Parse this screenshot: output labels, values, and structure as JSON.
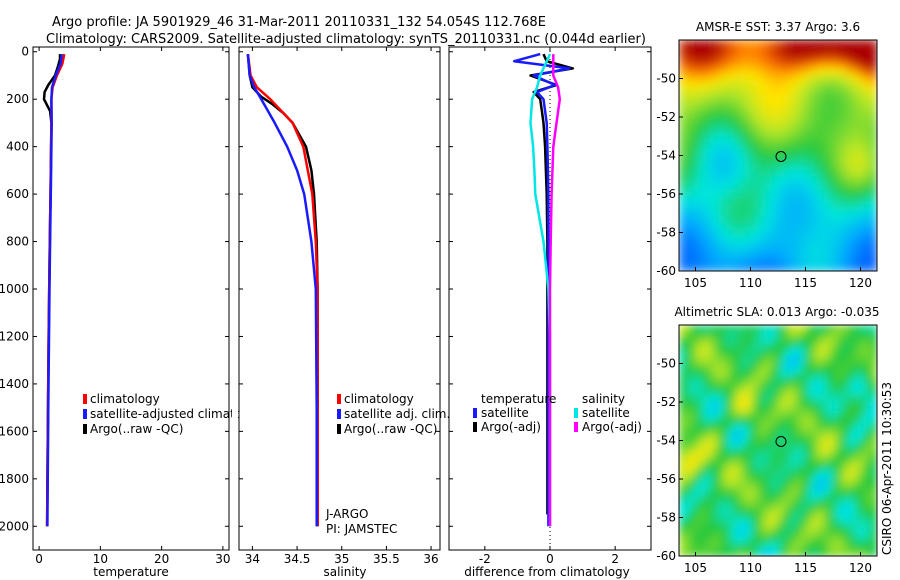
{
  "header": {
    "line1": "Argo profile: JA 5901929_46 31-Mar-2011 20110331_132 54.054S 112.768E",
    "line2": "Climatology: CARS2009. Satellite-adjusted climatology: synTS_20110331.nc (0.044d earlier)"
  },
  "side_label": "CSIRO 06-Apr-2011 10:30:53",
  "colors": {
    "red": "#ff0000",
    "blue": "#1a1aff",
    "black": "#000000",
    "cyan": "#00e6e6",
    "magenta": "#ff00ff"
  },
  "chart_data": [
    {
      "id": "temperature",
      "type": "line",
      "xlabel": "temperature",
      "ylabel": "",
      "xlim": [
        -1,
        31
      ],
      "ylim": [
        2100,
        -20
      ],
      "xticks": [
        0,
        10,
        20,
        30
      ],
      "yticks": [
        0,
        200,
        400,
        600,
        800,
        1000,
        1200,
        1400,
        1600,
        1800,
        2000
      ],
      "series": [
        {
          "name": "Argo(..raw -QC)",
          "color": "black",
          "depth": [
            10,
            30,
            60,
            100,
            140,
            170,
            200,
            250,
            300,
            400,
            600,
            800,
            1000,
            1200,
            1500,
            1800,
            2000
          ],
          "values": [
            3.4,
            3.4,
            3.1,
            2.6,
            1.5,
            0.9,
            0.8,
            1.8,
            2.0,
            1.95,
            1.85,
            1.75,
            1.65,
            1.55,
            1.45,
            1.35,
            1.3
          ]
        },
        {
          "name": "climatology",
          "color": "red",
          "depth": [
            10,
            50,
            100,
            150,
            200,
            300,
            400,
            600,
            800,
            1000,
            1500,
            2000
          ],
          "values": [
            4.1,
            3.8,
            2.9,
            2.2,
            2.0,
            2.0,
            1.95,
            1.85,
            1.75,
            1.65,
            1.45,
            1.3
          ]
        },
        {
          "name": "satellite-adjusted climatology",
          "color": "blue",
          "depth": [
            10,
            50,
            100,
            150,
            200,
            300,
            400,
            600,
            800,
            1000,
            1500,
            2000
          ],
          "values": [
            3.7,
            3.5,
            2.7,
            2.1,
            2.0,
            2.05,
            2.0,
            1.9,
            1.8,
            1.7,
            1.5,
            1.35
          ]
        }
      ],
      "legend": {
        "entries": [
          "climatology",
          "satellite-adjusted climatology",
          "Argo(..raw -QC)"
        ]
      }
    },
    {
      "id": "salinity",
      "type": "line",
      "xlabel": "salinity",
      "ylabel": "",
      "xlim": [
        33.85,
        36.1
      ],
      "ylim": [
        2100,
        -20
      ],
      "xticks": [
        34,
        34.5,
        35,
        35.5,
        36
      ],
      "yticks": [
        0,
        200,
        400,
        600,
        800,
        1000,
        1200,
        1400,
        1600,
        1800,
        2000
      ],
      "series": [
        {
          "name": "Argo(..raw -QC)",
          "color": "black",
          "depth": [
            10,
            100,
            150,
            190,
            220,
            260,
            300,
            400,
            500,
            600,
            800,
            1000,
            1500,
            2000
          ],
          "values": [
            33.95,
            33.97,
            34.0,
            34.1,
            34.22,
            34.35,
            34.45,
            34.6,
            34.66,
            34.69,
            34.72,
            34.73,
            34.73,
            34.73
          ]
        },
        {
          "name": "climatology",
          "color": "red",
          "depth": [
            10,
            100,
            150,
            200,
            300,
            400,
            600,
            800,
            1000,
            1500,
            2000
          ],
          "values": [
            33.95,
            33.98,
            34.05,
            34.2,
            34.45,
            34.57,
            34.67,
            34.71,
            34.73,
            34.73,
            34.73
          ]
        },
        {
          "name": "satellite adj. clim.",
          "color": "blue",
          "depth": [
            10,
            100,
            150,
            200,
            300,
            400,
            500,
            600,
            800,
            1000,
            1500,
            2000
          ],
          "values": [
            33.95,
            33.97,
            34.02,
            34.1,
            34.25,
            34.39,
            34.5,
            34.58,
            34.66,
            34.71,
            34.72,
            34.72
          ]
        }
      ],
      "legend": {
        "entries": [
          "climatology",
          "satellite adj. clim.",
          "Argo(..raw -QC)"
        ]
      },
      "annotations": [
        "J-ARGO",
        "PI: JAMSTEC"
      ]
    },
    {
      "id": "difference",
      "type": "line",
      "xlabel": "difference from climatology",
      "ylabel": "",
      "xlim": [
        -3.1,
        3.1
      ],
      "ylim": [
        2100,
        -20
      ],
      "xticks": [
        -2,
        0,
        2
      ],
      "yticks": [
        0,
        200,
        400,
        600,
        800,
        1000,
        1200,
        1400,
        1600,
        1800,
        2000
      ],
      "series": [
        {
          "name": "temperature Argo(-adj)",
          "color": "black",
          "depth": [
            10,
            40,
            70,
            100,
            140,
            170,
            200,
            250,
            300,
            400,
            600,
            800,
            1000,
            1500,
            1950
          ],
          "values": [
            -0.2,
            -0.1,
            0.7,
            -0.6,
            0.2,
            -0.5,
            -0.3,
            -0.25,
            -0.2,
            -0.15,
            -0.1,
            -0.08,
            -0.08,
            -0.08,
            -0.08
          ]
        },
        {
          "name": "temperature satellite",
          "color": "blue",
          "depth": [
            10,
            40,
            70,
            100,
            140,
            170,
            200,
            250,
            300,
            400,
            600,
            800,
            1000,
            1500,
            2000
          ],
          "values": [
            -0.3,
            -1.1,
            0.6,
            -0.5,
            0.15,
            -0.4,
            -0.2,
            -0.15,
            -0.1,
            -0.08,
            -0.05,
            -0.05,
            -0.05,
            -0.05,
            -0.05
          ]
        },
        {
          "name": "salinity satellite",
          "color": "cyan",
          "depth": [
            10,
            100,
            150,
            200,
            300,
            400,
            500,
            600,
            800,
            1000,
            1200,
            1500,
            2000
          ],
          "values": [
            0.0,
            -0.3,
            -0.4,
            -0.55,
            -0.6,
            -0.52,
            -0.48,
            -0.45,
            -0.2,
            -0.05,
            0.0,
            0.0,
            0.0
          ]
        },
        {
          "name": "salinity Argo(-adj)",
          "color": "magenta",
          "depth": [
            10,
            100,
            150,
            200,
            300,
            400,
            600,
            800,
            1000,
            1500,
            2000
          ],
          "values": [
            0.1,
            0.1,
            0.25,
            0.3,
            0.2,
            0.1,
            0.05,
            0.02,
            0.0,
            0.0,
            0.0
          ]
        }
      ],
      "legend": {
        "groups": [
          {
            "title": "temperature",
            "entries": [
              "satellite",
              "Argo(-adj)"
            ]
          },
          {
            "title": "salinity",
            "entries": [
              "satellite",
              "Argo(-adj)"
            ]
          }
        ]
      }
    },
    {
      "id": "sst-map",
      "type": "heatmap",
      "title": "AMSR-E SST: 3.37 Argo: 3.6",
      "xlim": [
        103.5,
        121.5
      ],
      "ylim": [
        -60,
        -48
      ],
      "xticks": [
        105,
        110,
        115,
        120
      ],
      "yticks": [
        -50,
        -52,
        -54,
        -56,
        -58,
        -60
      ],
      "marker": {
        "lon": 112.77,
        "lat": -54.05
      }
    },
    {
      "id": "sla-map",
      "type": "heatmap",
      "title": "Altimetric SLA: 0.013 Argo: -0.035",
      "xlim": [
        103.5,
        121.5
      ],
      "ylim": [
        -60,
        -48
      ],
      "xticks": [
        105,
        110,
        115,
        120
      ],
      "yticks": [
        -50,
        -52,
        -54,
        -56,
        -58,
        -60
      ],
      "marker": {
        "lon": 112.77,
        "lat": -54.05
      }
    }
  ]
}
